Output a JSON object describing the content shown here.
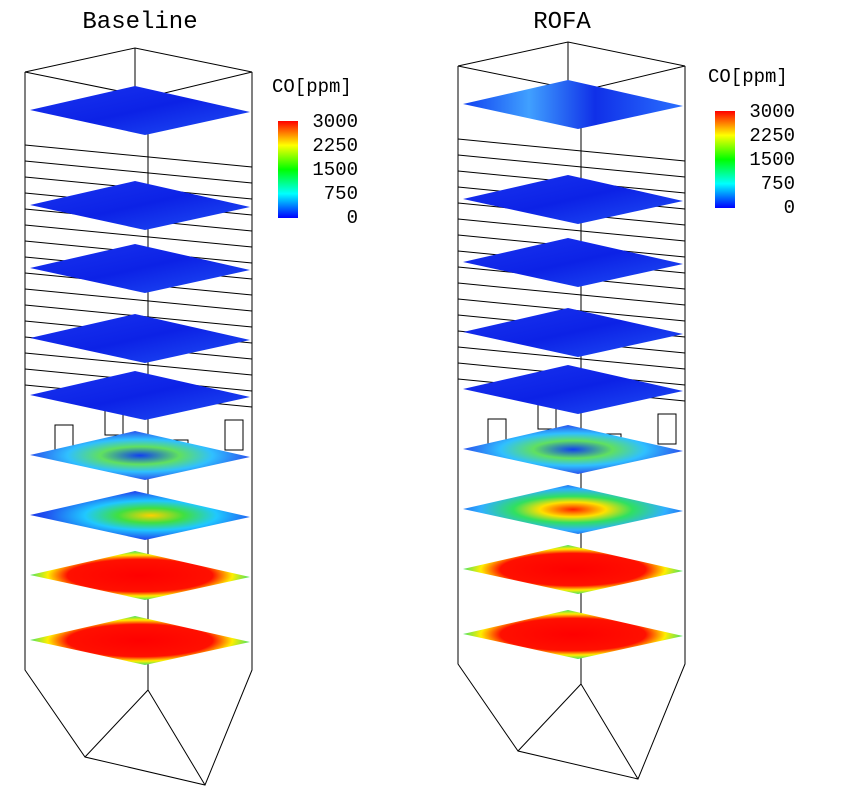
{
  "panels": [
    {
      "title": "Baseline",
      "colorbar": {
        "label": "CO[ppm]",
        "ticks": [
          3000,
          2250,
          1500,
          750,
          0
        ]
      }
    },
    {
      "title": "ROFA",
      "colorbar": {
        "label": "CO[ppm]",
        "ticks": [
          3000,
          2250,
          1500,
          750,
          0
        ]
      }
    }
  ]
}
